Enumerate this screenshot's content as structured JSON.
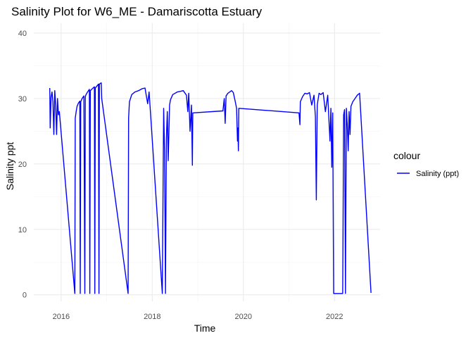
{
  "chart_data": {
    "type": "line",
    "title": "Salinity Plot for W6_ME - Damariscotta Estuary",
    "xlabel": "Time",
    "ylabel": "Salinity ppt",
    "x_ticks": [
      2016,
      2018,
      2020,
      2022
    ],
    "y_ticks": [
      0,
      10,
      20,
      30,
      40
    ],
    "xlim": [
      2015.4,
      2023.0
    ],
    "ylim": [
      -1.0,
      41.5
    ],
    "grid": true,
    "legend": {
      "title": "colour",
      "position": "right"
    },
    "series": [
      {
        "name": "Salinity (ppt)",
        "color": "#0000ff",
        "x": [
          2015.75,
          2015.76,
          2015.78,
          2015.8,
          2015.82,
          2015.84,
          2015.86,
          2015.88,
          2015.9,
          2015.92,
          2015.94,
          2015.96,
          2016.3,
          2016.31,
          2016.33,
          2016.35,
          2016.38,
          2016.41,
          2016.42,
          2016.43,
          2016.46,
          2016.5,
          2016.52,
          2016.53,
          2016.54,
          2016.58,
          2016.62,
          2016.63,
          2016.64,
          2016.7,
          2016.73,
          2016.74,
          2016.75,
          2016.82,
          2016.83,
          2016.84,
          2016.88,
          2016.89,
          2017.47,
          2017.48,
          2017.5,
          2017.55,
          2017.62,
          2017.7,
          2017.78,
          2017.84,
          2017.9,
          2017.93,
          2017.96,
          2018.22,
          2018.25,
          2018.27,
          2018.29,
          2018.31,
          2018.33,
          2018.35,
          2018.38,
          2018.4,
          2018.45,
          2018.55,
          2018.62,
          2018.68,
          2018.75,
          2018.78,
          2018.8,
          2018.83,
          2018.86,
          2018.88,
          2018.89,
          2019.55,
          2019.58,
          2019.6,
          2019.62,
          2019.66,
          2019.7,
          2019.74,
          2019.78,
          2019.82,
          2019.85,
          2019.87,
          2019.88,
          2019.89,
          2019.9,
          2021.22,
          2021.24,
          2021.25,
          2021.3,
          2021.35,
          2021.4,
          2021.45,
          2021.5,
          2021.55,
          2021.58,
          2021.6,
          2021.62,
          2021.66,
          2021.7,
          2021.75,
          2021.8,
          2021.85,
          2021.9,
          2021.92,
          2021.94,
          2021.96,
          2021.98,
          2022.18,
          2022.2,
          2022.22,
          2022.24,
          2022.26,
          2022.28,
          2022.3,
          2022.32,
          2022.34,
          2022.36,
          2022.4,
          2022.45,
          2022.5,
          2022.55,
          2022.8
        ],
        "y": [
          31.6,
          25.5,
          30.2,
          31.0,
          29.5,
          24.5,
          31.2,
          29.0,
          24.5,
          30.0,
          27.5,
          28.0,
          0.2,
          27.0,
          28.0,
          28.8,
          29.3,
          29.6,
          0.2,
          29.5,
          30.0,
          30.4,
          0.2,
          30.2,
          30.5,
          31.0,
          31.4,
          0.2,
          31.2,
          31.6,
          31.8,
          0.2,
          31.6,
          32.2,
          0.2,
          32.2,
          32.4,
          30.0,
          0.2,
          27.0,
          29.5,
          30.6,
          31.0,
          31.2,
          31.5,
          31.6,
          29.2,
          31.0,
          28.0,
          0.2,
          28.5,
          22.0,
          0.2,
          24.0,
          28.0,
          20.5,
          29.0,
          29.8,
          30.6,
          31.0,
          31.1,
          31.2,
          30.5,
          28.0,
          30.8,
          25.0,
          29.0,
          19.8,
          27.8,
          28.1,
          30.0,
          26.2,
          30.4,
          30.8,
          31.0,
          31.2,
          30.9,
          29.6,
          28.5,
          23.5,
          25.5,
          22.0,
          28.5,
          27.8,
          26.0,
          29.5,
          30.3,
          30.8,
          30.7,
          30.9,
          29.0,
          30.5,
          27.2,
          14.5,
          29.0,
          30.8,
          30.6,
          30.9,
          28.0,
          30.5,
          23.5,
          28.5,
          19.5,
          27.8,
          0.2,
          0.2,
          27.5,
          28.3,
          0.2,
          28.5,
          26.0,
          22.0,
          28.0,
          24.5,
          28.8,
          29.5,
          30.0,
          30.5,
          30.8,
          0.3
        ]
      }
    ]
  }
}
